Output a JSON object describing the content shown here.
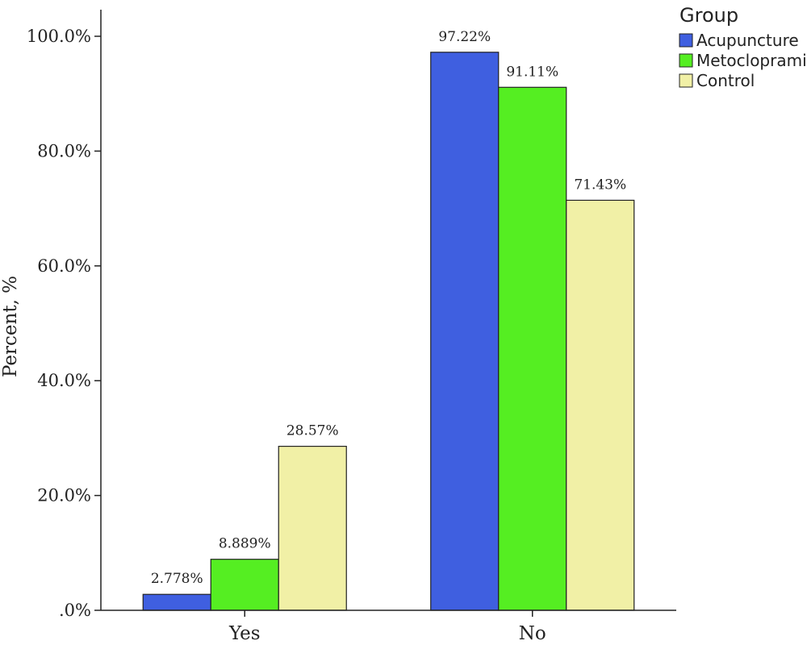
{
  "chart_data": {
    "type": "bar",
    "categories": [
      "Yes",
      "No"
    ],
    "series": [
      {
        "name": "Acupuncture",
        "values": [
          2.778,
          97.22
        ],
        "labels": [
          "2.778%",
          "97.22%"
        ],
        "color": "#3f5fe0"
      },
      {
        "name": "Metoclopramide",
        "values": [
          8.889,
          91.11
        ],
        "labels": [
          "8.889%",
          "91.11%"
        ],
        "color": "#55ee22"
      },
      {
        "name": "Control",
        "values": [
          28.57,
          71.43
        ],
        "labels": [
          "28.57%",
          "71.43%"
        ],
        "color": "#f1f0a6"
      }
    ],
    "ylabel": "Percent, %",
    "xlabel": "",
    "ylim": [
      0,
      100
    ],
    "yticks": [
      0,
      20,
      40,
      60,
      80,
      100
    ],
    "ytick_labels": [
      ".0%",
      "20.0%",
      "40.0%",
      "60.0%",
      "80.0%",
      "100.0%"
    ],
    "legend": {
      "title": "Group",
      "position": "top-right"
    },
    "grid": false
  }
}
